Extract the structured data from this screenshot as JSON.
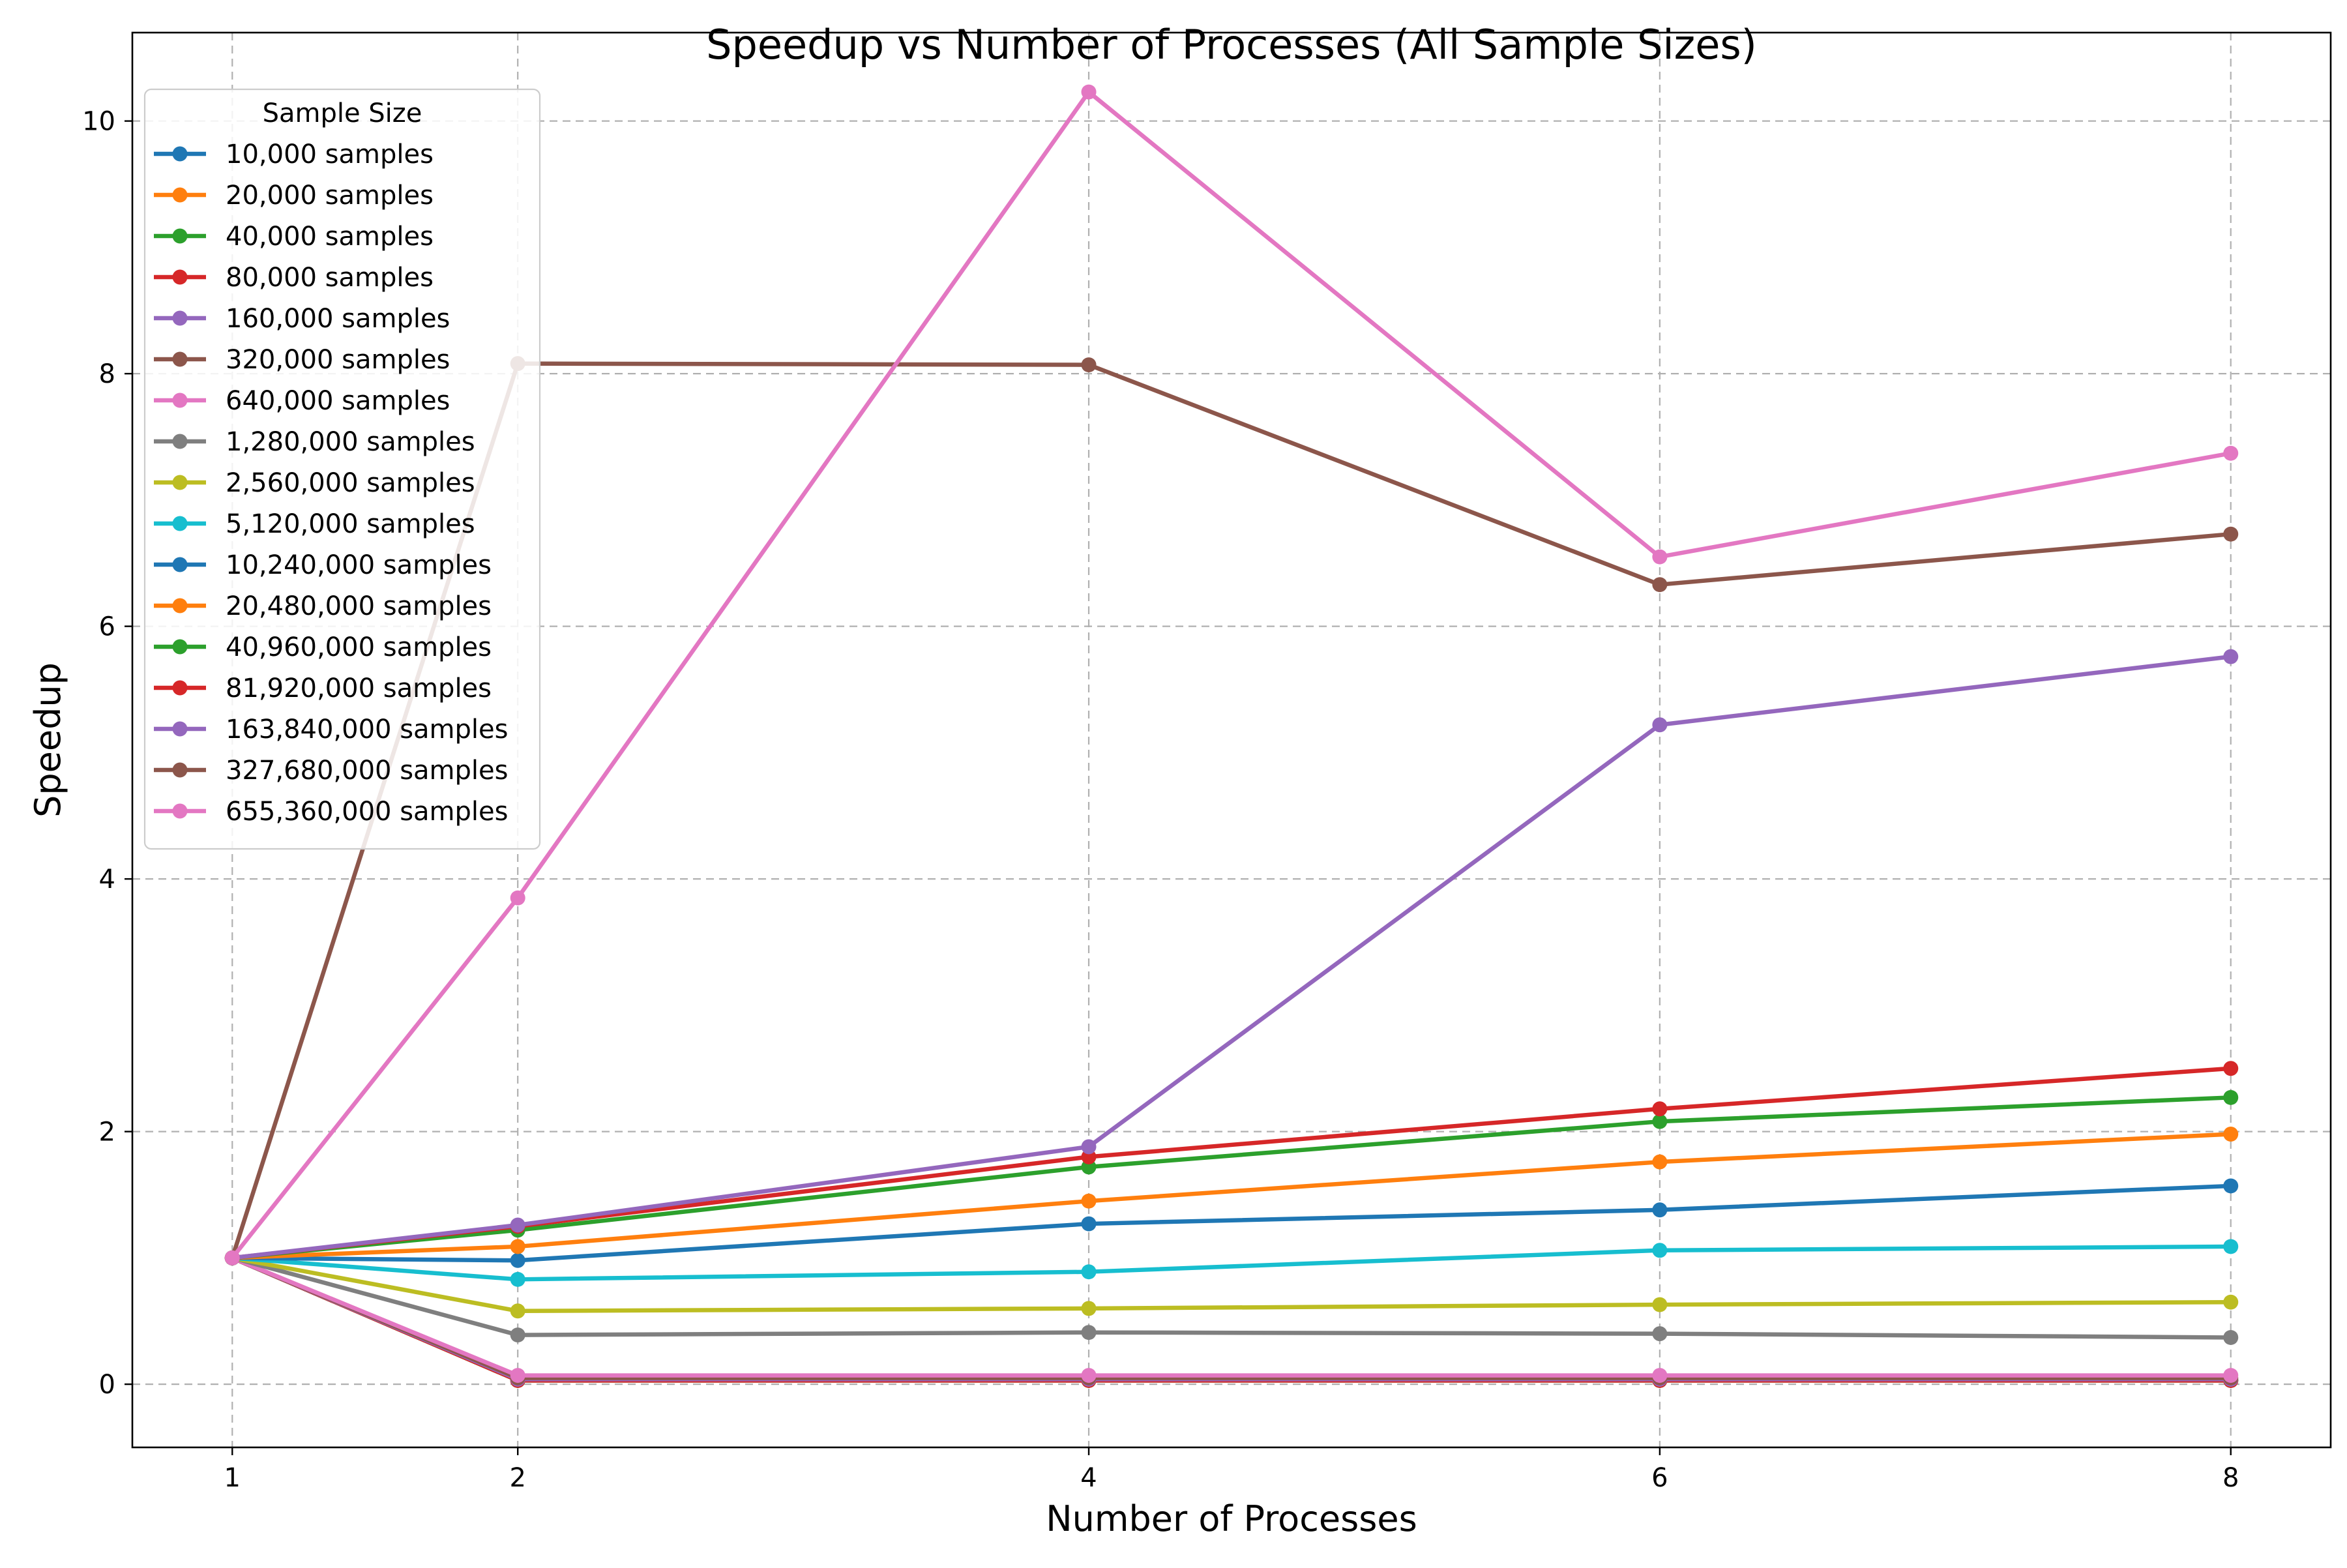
{
  "chart_data": {
    "type": "line",
    "title": "Speedup vs Number of Processes (All Sample Sizes)",
    "xlabel": "Number of Processes",
    "ylabel": "Speedup",
    "x": [
      1,
      2,
      4,
      6,
      8
    ],
    "xlim": [
      0.65,
      8.35
    ],
    "ylim": [
      -0.5,
      10.7
    ],
    "xticks": [
      1,
      2,
      4,
      6,
      8
    ],
    "yticks": [
      0,
      2,
      4,
      6,
      8,
      10
    ],
    "grid": true,
    "legend": {
      "title": "Sample Size",
      "placement": "top-left"
    },
    "series": [
      {
        "name": "10,000 samples",
        "color": "#1f77b4",
        "values": [
          1.0,
          0.03,
          0.03,
          0.03,
          0.03
        ]
      },
      {
        "name": "20,000 samples",
        "color": "#ff7f0e",
        "values": [
          1.0,
          0.03,
          0.03,
          0.03,
          0.03
        ]
      },
      {
        "name": "40,000 samples",
        "color": "#2ca02c",
        "values": [
          1.0,
          0.03,
          0.03,
          0.03,
          0.03
        ]
      },
      {
        "name": "80,000 samples",
        "color": "#d62728",
        "values": [
          1.0,
          0.03,
          0.03,
          0.03,
          0.03
        ]
      },
      {
        "name": "160,000 samples",
        "color": "#9467bd",
        "values": [
          1.0,
          0.04,
          0.04,
          0.04,
          0.04
        ]
      },
      {
        "name": "320,000 samples",
        "color": "#8c564b",
        "values": [
          1.0,
          0.05,
          0.05,
          0.05,
          0.05
        ]
      },
      {
        "name": "640,000 samples",
        "color": "#e377c2",
        "values": [
          1.0,
          0.07,
          0.07,
          0.07,
          0.07
        ]
      },
      {
        "name": "1,280,000 samples",
        "color": "#7f7f7f",
        "values": [
          1.0,
          0.39,
          0.41,
          0.4,
          0.37
        ]
      },
      {
        "name": "2,560,000 samples",
        "color": "#bcbd22",
        "values": [
          1.0,
          0.58,
          0.6,
          0.63,
          0.65
        ]
      },
      {
        "name": "5,120,000 samples",
        "color": "#17becf",
        "values": [
          1.0,
          0.83,
          0.89,
          1.06,
          1.09
        ]
      },
      {
        "name": "10,240,000 samples",
        "color": "#1f77b4",
        "values": [
          1.0,
          0.98,
          1.27,
          1.38,
          1.57
        ]
      },
      {
        "name": "20,480,000 samples",
        "color": "#ff7f0e",
        "values": [
          1.0,
          1.09,
          1.45,
          1.76,
          1.98
        ]
      },
      {
        "name": "40,960,000 samples",
        "color": "#2ca02c",
        "values": [
          1.0,
          1.22,
          1.72,
          2.08,
          2.27
        ]
      },
      {
        "name": "81,920,000 samples",
        "color": "#d62728",
        "values": [
          1.0,
          1.25,
          1.8,
          2.18,
          2.5
        ]
      },
      {
        "name": "163,840,000 samples",
        "color": "#9467bd",
        "values": [
          1.0,
          1.26,
          1.88,
          5.22,
          5.76
        ]
      },
      {
        "name": "327,680,000 samples",
        "color": "#8c564b",
        "values": [
          1.0,
          8.08,
          8.07,
          6.33,
          6.73
        ]
      },
      {
        "name": "655,360,000 samples",
        "color": "#e377c2",
        "values": [
          1.0,
          3.85,
          10.23,
          6.55,
          7.37
        ]
      }
    ]
  }
}
